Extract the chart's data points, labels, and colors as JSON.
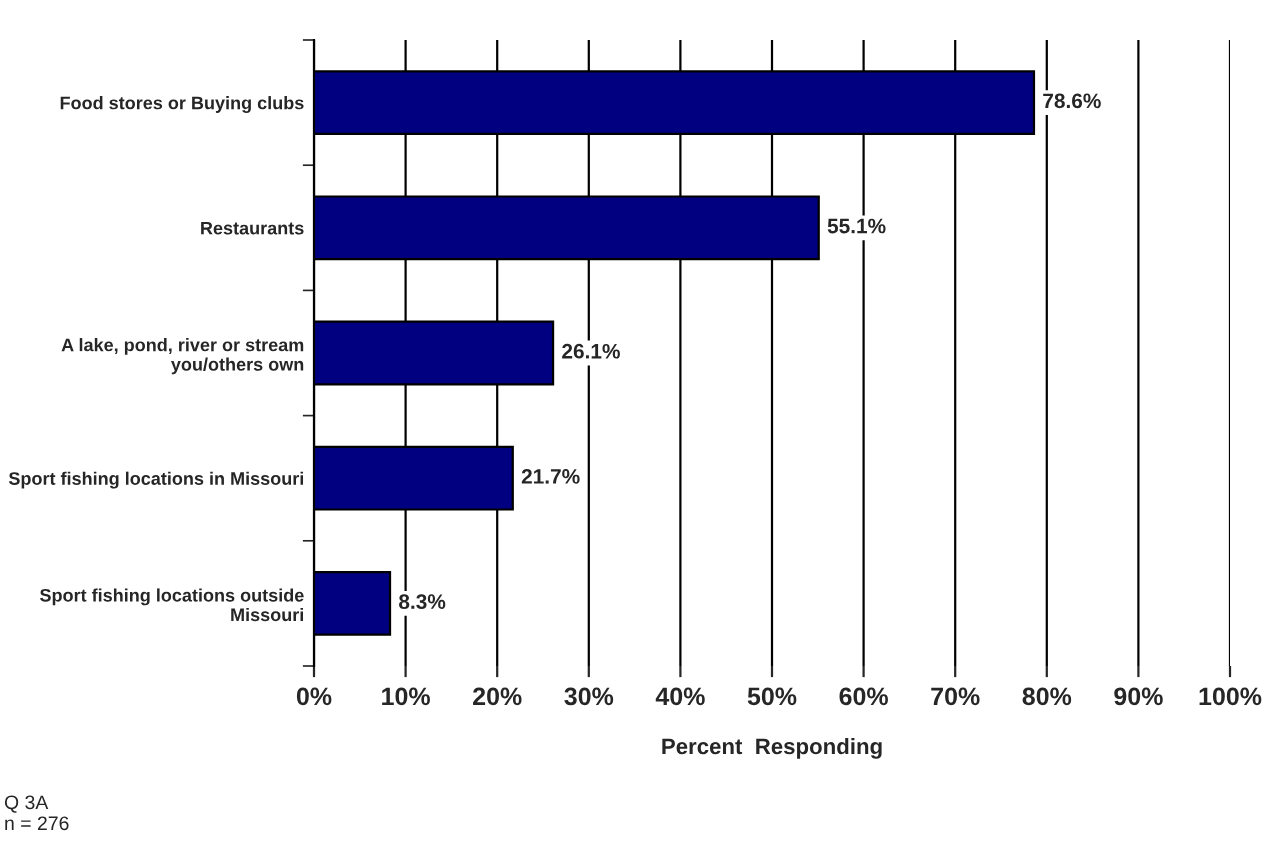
{
  "chart_data": {
    "type": "bar",
    "orientation": "horizontal",
    "categories": [
      "Food stores or Buying clubs",
      "Restaurants",
      "A lake, pond, river or stream\nyou/others own",
      "Sport fishing locations in Missouri",
      "Sport fishing locations outside\nMissouri"
    ],
    "values": [
      78.6,
      55.1,
      26.1,
      21.7,
      8.3
    ],
    "value_labels": [
      "78.6%",
      "55.1%",
      "26.1%",
      "21.7%",
      "8.3%"
    ],
    "color": "#000080",
    "xlabel": "Percent  Responding",
    "xlim": [
      0,
      100
    ],
    "xticks": [
      {
        "value": 0,
        "label": "0%"
      },
      {
        "value": 10,
        "label": "10%"
      },
      {
        "value": 20,
        "label": "20%"
      },
      {
        "value": 30,
        "label": "30%"
      },
      {
        "value": 40,
        "label": "40%"
      },
      {
        "value": 50,
        "label": "50%"
      },
      {
        "value": 60,
        "label": "60%"
      },
      {
        "value": 70,
        "label": "70%"
      },
      {
        "value": 80,
        "label": "80%"
      },
      {
        "value": 90,
        "label": "90%"
      },
      {
        "value": 100,
        "label": "100%"
      }
    ],
    "grid": "x",
    "annotations": [
      "Q 3A\nn = 276"
    ]
  }
}
